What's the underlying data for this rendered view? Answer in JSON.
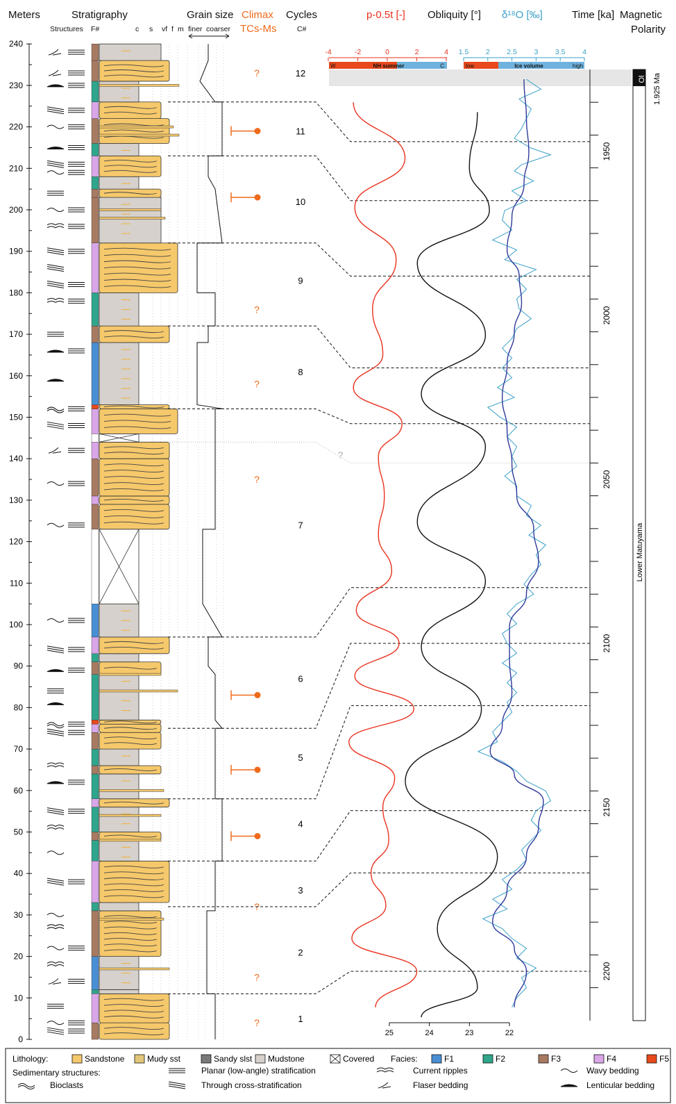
{
  "headers": {
    "meters": "Meters",
    "stratigraphy": "Stratigraphy",
    "structures": "Structures",
    "facies_num": "F#",
    "grain_c": "c",
    "grain_s": "s",
    "grain_vf": "vf",
    "grain_f": "f",
    "grain_m": "m",
    "grain_size": "Grain size",
    "finer": "finer",
    "coarser": "coarser",
    "climax": "Climax",
    "tcs_ms": "TCs-Ms",
    "cycles": "Cycles",
    "cycle_num": "C#",
    "precession": "p-0.5t [-]",
    "obliquity": "Obliquity [°]",
    "d18o": "δ¹⁸O [‰]",
    "time": "Time [ka]",
    "magnetic": "Magnetic",
    "polarity": "Polarity"
  },
  "depth_axis": {
    "min": 0,
    "max": 240,
    "ticks": [
      0,
      10,
      20,
      30,
      40,
      50,
      60,
      70,
      80,
      90,
      100,
      110,
      120,
      130,
      140,
      150,
      160,
      170,
      180,
      190,
      200,
      210,
      220,
      230,
      240
    ]
  },
  "time_axis": {
    "min": 1925,
    "max": 2215,
    "ticks": [
      1950,
      2000,
      2050,
      2100,
      2150,
      2200
    ]
  },
  "precession_axis": {
    "min": -4,
    "max": 4,
    "ticks": [
      "-4",
      "-2",
      "0",
      "2",
      "4"
    ],
    "bar_left": "W",
    "bar_mid": "NH summer",
    "bar_right": "C"
  },
  "d18o_axis": {
    "min": 1.5,
    "max": 4,
    "ticks": [
      "1.5",
      "2",
      "2.5",
      "3",
      "3.5",
      "4"
    ],
    "bar_left": "low",
    "bar_mid": "Ice volume",
    "bar_right": "high"
  },
  "obliquity_axis": {
    "min": 22,
    "max": 25,
    "ticks": [
      "25",
      "24",
      "23",
      "22"
    ]
  },
  "cycles": [
    {
      "label": "1",
      "m": 5
    },
    {
      "label": "2",
      "m": 21
    },
    {
      "label": "3",
      "m": 36
    },
    {
      "label": "4",
      "m": 52
    },
    {
      "label": "5",
      "m": 68
    },
    {
      "label": "6",
      "m": 87
    },
    {
      "label": "7",
      "m": 124
    },
    {
      "label": "8",
      "m": 161
    },
    {
      "label": "9",
      "m": 183
    },
    {
      "label": "10",
      "m": 202
    },
    {
      "label": "11",
      "m": 219
    },
    {
      "label": "12",
      "m": 233
    }
  ],
  "climax": [
    {
      "m": 4,
      "type": "?"
    },
    {
      "m": 15,
      "type": "?"
    },
    {
      "m": 32,
      "type": "?"
    },
    {
      "m": 49,
      "type": "bar"
    },
    {
      "m": 65,
      "type": "bar"
    },
    {
      "m": 83,
      "type": "bar"
    },
    {
      "m": 135,
      "type": "?"
    },
    {
      "m": 158,
      "type": "?"
    },
    {
      "m": 176,
      "type": "?"
    },
    {
      "m": 203,
      "type": "bar"
    },
    {
      "m": 219,
      "type": "bar"
    },
    {
      "m": 233,
      "type": "?"
    }
  ],
  "cycle_boundaries": [
    {
      "m": 11,
      "t": 2200
    },
    {
      "m": 32,
      "t": 2170
    },
    {
      "m": 43,
      "t": 2151
    },
    {
      "m": 58,
      "t": 2119
    },
    {
      "m": 75,
      "t": 2100
    },
    {
      "m": 97,
      "t": 2083
    },
    {
      "m": 152,
      "t": 2033
    },
    {
      "m": 172,
      "t": 2016
    },
    {
      "m": 192,
      "t": 1988
    },
    {
      "m": 213,
      "t": 1965
    },
    {
      "m": 226,
      "t": 1947
    }
  ],
  "uncertain_boundary": {
    "m": 144,
    "t": 2045,
    "label": "?"
  },
  "precession_peaks": [
    {
      "t": 1935,
      "v": -2.3
    },
    {
      "t": 1952,
      "v": 1.2
    },
    {
      "t": 1967,
      "v": -2.2
    },
    {
      "t": 1983,
      "v": 0.6
    },
    {
      "t": 1998,
      "v": -1.0
    },
    {
      "t": 2012,
      "v": -0.3
    },
    {
      "t": 2022,
      "v": -2.3
    },
    {
      "t": 2033,
      "v": 1.0
    },
    {
      "t": 2043,
      "v": -0.6
    },
    {
      "t": 2055,
      "v": -0.2
    },
    {
      "t": 2067,
      "v": -0.6
    },
    {
      "t": 2078,
      "v": 0.3
    },
    {
      "t": 2090,
      "v": -2.1
    },
    {
      "t": 2100,
      "v": 0.8
    },
    {
      "t": 2110,
      "v": -2.2
    },
    {
      "t": 2120,
      "v": 1.8
    },
    {
      "t": 2130,
      "v": -2.6
    },
    {
      "t": 2141,
      "v": 0.5
    },
    {
      "t": 2150,
      "v": -0.3
    },
    {
      "t": 2160,
      "v": 0.1
    },
    {
      "t": 2170,
      "v": -1.1
    },
    {
      "t": 2180,
      "v": -0.1
    },
    {
      "t": 2190,
      "v": -2.4
    },
    {
      "t": 2200,
      "v": 2.0
    },
    {
      "t": 2211,
      "v": -0.8
    }
  ],
  "obliquity_peaks": [
    {
      "t": 1938,
      "v": 22.8
    },
    {
      "t": 1955,
      "v": 23.0
    },
    {
      "t": 1968,
      "v": 22.5
    },
    {
      "t": 1984,
      "v": 24.3
    },
    {
      "t": 2006,
      "v": 22.6
    },
    {
      "t": 2024,
      "v": 24.2
    },
    {
      "t": 2040,
      "v": 22.6
    },
    {
      "t": 2063,
      "v": 24.3
    },
    {
      "t": 2081,
      "v": 22.6
    },
    {
      "t": 2101,
      "v": 24.2
    },
    {
      "t": 2120,
      "v": 22.7
    },
    {
      "t": 2142,
      "v": 24.6
    },
    {
      "t": 2165,
      "v": 22.3
    },
    {
      "t": 2187,
      "v": 23.8
    },
    {
      "t": 2205,
      "v": 22.8
    },
    {
      "t": 2214,
      "v": 24.2
    }
  ],
  "d18o_raw": [
    [
      1928,
      2.8
    ],
    [
      1931,
      3.1
    ],
    [
      1934,
      2.65
    ],
    [
      1937,
      2.9
    ],
    [
      1940,
      2.8
    ],
    [
      1943,
      2.7
    ],
    [
      1946,
      2.55
    ],
    [
      1949,
      2.9
    ],
    [
      1951,
      3.3
    ],
    [
      1954,
      2.7
    ],
    [
      1956,
      2.55
    ],
    [
      1959,
      2.95
    ],
    [
      1962,
      2.5
    ],
    [
      1965,
      2.8
    ],
    [
      1968,
      2.35
    ],
    [
      1971,
      2.3
    ],
    [
      1974,
      2.5
    ],
    [
      1977,
      2.1
    ],
    [
      1980,
      2.6
    ],
    [
      1983,
      2.35
    ],
    [
      1986,
      3.0
    ],
    [
      1989,
      2.6
    ],
    [
      1992,
      2.8
    ],
    [
      1995,
      2.6
    ],
    [
      1998,
      2.65
    ],
    [
      2001,
      2.9
    ],
    [
      2004,
      2.6
    ],
    [
      2007,
      2.5
    ],
    [
      2010,
      2.3
    ],
    [
      2013,
      2.5
    ],
    [
      2016,
      2.3
    ],
    [
      2019,
      2.5
    ],
    [
      2022,
      2.2
    ],
    [
      2025,
      2.55
    ],
    [
      2028,
      2.0
    ],
    [
      2031,
      2.25
    ],
    [
      2034,
      2.6
    ],
    [
      2037,
      2.4
    ],
    [
      2040,
      2.6
    ],
    [
      2043,
      2.5
    ],
    [
      2046,
      2.6
    ],
    [
      2049,
      2.35
    ],
    [
      2052,
      2.6
    ],
    [
      2055,
      2.6
    ],
    [
      2058,
      2.9
    ],
    [
      2061,
      2.8
    ],
    [
      2064,
      3.1
    ],
    [
      2067,
      2.85
    ],
    [
      2070,
      3.2
    ],
    [
      2073,
      3.0
    ],
    [
      2076,
      3.1
    ],
    [
      2079,
      2.9
    ],
    [
      2082,
      2.75
    ],
    [
      2085,
      2.95
    ],
    [
      2088,
      2.6
    ],
    [
      2091,
      2.4
    ],
    [
      2094,
      2.6
    ],
    [
      2097,
      2.3
    ],
    [
      2100,
      2.4
    ],
    [
      2103,
      2.6
    ],
    [
      2106,
      2.3
    ],
    [
      2109,
      2.6
    ],
    [
      2112,
      2.4
    ],
    [
      2115,
      2.6
    ],
    [
      2118,
      2.4
    ],
    [
      2121,
      2.5
    ],
    [
      2124,
      2.3
    ],
    [
      2127,
      2.1
    ],
    [
      2130,
      2.2
    ],
    [
      2133,
      1.8
    ],
    [
      2136,
      2.3
    ],
    [
      2139,
      2.6
    ],
    [
      2142,
      2.8
    ],
    [
      2145,
      3.2
    ],
    [
      2148,
      3.3
    ],
    [
      2151,
      3.0
    ],
    [
      2154,
      2.9
    ],
    [
      2157,
      3.1
    ],
    [
      2160,
      2.9
    ],
    [
      2163,
      2.7
    ],
    [
      2166,
      2.8
    ],
    [
      2169,
      2.6
    ],
    [
      2172,
      2.3
    ],
    [
      2175,
      2.5
    ],
    [
      2178,
      2.1
    ],
    [
      2181,
      2.4
    ],
    [
      2184,
      1.9
    ],
    [
      2187,
      2.3
    ],
    [
      2190,
      2.5
    ],
    [
      2193,
      2.8
    ],
    [
      2196,
      2.6
    ],
    [
      2199,
      3.0
    ],
    [
      2202,
      2.7
    ],
    [
      2205,
      2.8
    ],
    [
      2208,
      2.6
    ],
    [
      2211,
      2.5
    ]
  ],
  "d18o_smooth": [
    [
      1928,
      2.75
    ],
    [
      1940,
      2.8
    ],
    [
      1950,
      2.85
    ],
    [
      1960,
      2.75
    ],
    [
      1970,
      2.5
    ],
    [
      1980,
      2.4
    ],
    [
      1988,
      2.65
    ],
    [
      1996,
      2.7
    ],
    [
      2005,
      2.55
    ],
    [
      2015,
      2.4
    ],
    [
      2025,
      2.3
    ],
    [
      2035,
      2.4
    ],
    [
      2045,
      2.5
    ],
    [
      2055,
      2.6
    ],
    [
      2065,
      2.95
    ],
    [
      2075,
      3.05
    ],
    [
      2085,
      2.8
    ],
    [
      2095,
      2.45
    ],
    [
      2105,
      2.45
    ],
    [
      2115,
      2.5
    ],
    [
      2125,
      2.3
    ],
    [
      2133,
      2.05
    ],
    [
      2140,
      2.55
    ],
    [
      2148,
      3.15
    ],
    [
      2156,
      3.05
    ],
    [
      2165,
      2.8
    ],
    [
      2175,
      2.4
    ],
    [
      2185,
      2.1
    ],
    [
      2193,
      2.55
    ],
    [
      2200,
      2.8
    ],
    [
      2211,
      2.55
    ]
  ],
  "magnetic": {
    "label": "Lower Matuyama",
    "event": "Ol",
    "event_age": "1.925 Ma"
  },
  "stratigraphy": [
    {
      "from": 0,
      "to": 4,
      "lith": "sandstone",
      "fac": "F3",
      "gs": "f"
    },
    {
      "from": 4,
      "to": 11,
      "lith": "sandstone",
      "fac": "F4",
      "gs": "f"
    },
    {
      "from": 11,
      "to": 12,
      "lith": "mudstone",
      "fac": "F2",
      "gs": "c"
    },
    {
      "from": 12,
      "to": 20,
      "lith": "mudstone",
      "fac": "F1",
      "gs": "c"
    },
    {
      "from": 20,
      "to": 31,
      "lith": "sandstone",
      "fac": "F3",
      "gs": "vf"
    },
    {
      "from": 31,
      "to": 33,
      "lith": "mudstone",
      "fac": "F2",
      "gs": "c"
    },
    {
      "from": 33,
      "to": 43,
      "lith": "sandstone",
      "fac": "F4",
      "gs": "f"
    },
    {
      "from": 43,
      "to": 48,
      "lith": "mudstone",
      "fac": "F2",
      "gs": "c"
    },
    {
      "from": 48,
      "to": 50,
      "lith": "sandstone",
      "fac": "F3",
      "gs": "vf"
    },
    {
      "from": 50,
      "to": 56,
      "lith": "mudstone",
      "fac": "F2",
      "gs": "c"
    },
    {
      "from": 56,
      "to": 58,
      "lith": "sandstone",
      "fac": "F4",
      "gs": "f"
    },
    {
      "from": 58,
      "to": 64,
      "lith": "mudstone",
      "fac": "F2",
      "gs": "c"
    },
    {
      "from": 64,
      "to": 66,
      "lith": "sandstone",
      "fac": "F3",
      "gs": "vf"
    },
    {
      "from": 66,
      "to": 70,
      "lith": "mudstone",
      "fac": "F2",
      "gs": "c"
    },
    {
      "from": 70,
      "to": 74,
      "lith": "sandstone",
      "fac": "F3",
      "gs": "vf"
    },
    {
      "from": 74,
      "to": 76,
      "lith": "sandstone",
      "fac": "F4",
      "gs": "vf"
    },
    {
      "from": 76,
      "to": 77,
      "lith": "sandstone",
      "fac": "F5",
      "gs": "vf"
    },
    {
      "from": 77,
      "to": 88,
      "lith": "mudstone",
      "fac": "F2",
      "gs": "c"
    },
    {
      "from": 88,
      "to": 91,
      "lith": "sandstone",
      "fac": "F3",
      "gs": "vf"
    },
    {
      "from": 91,
      "to": 93,
      "lith": "mudstone",
      "fac": "F2",
      "gs": "c"
    },
    {
      "from": 93,
      "to": 97,
      "lith": "sandstone",
      "fac": "F4",
      "gs": "f"
    },
    {
      "from": 97,
      "to": 105,
      "lith": "mudstone",
      "fac": "F1",
      "gs": "c"
    },
    {
      "from": 105,
      "to": 123,
      "lith": "covered",
      "fac": "none",
      "gs": "c"
    },
    {
      "from": 123,
      "to": 129,
      "lith": "sandstone",
      "fac": "F3",
      "gs": "f"
    },
    {
      "from": 129,
      "to": 131,
      "lith": "sandstone",
      "fac": "F4",
      "gs": "f"
    },
    {
      "from": 131,
      "to": 140,
      "lith": "sandstone",
      "fac": "F3",
      "gs": "f"
    },
    {
      "from": 140,
      "to": 144,
      "lith": "sandstone",
      "fac": "F4",
      "gs": "f"
    },
    {
      "from": 144,
      "to": 146,
      "lith": "covered",
      "fac": "none",
      "gs": "c"
    },
    {
      "from": 146,
      "to": 152,
      "lith": "sandstone",
      "fac": "F4",
      "gs": "m"
    },
    {
      "from": 152,
      "to": 153,
      "lith": "sandstone",
      "fac": "F5",
      "gs": "f"
    },
    {
      "from": 153,
      "to": 168,
      "lith": "mudstone",
      "fac": "F1",
      "gs": "c"
    },
    {
      "from": 168,
      "to": 172,
      "lith": "sandstone",
      "fac": "F3",
      "gs": "f"
    },
    {
      "from": 172,
      "to": 180,
      "lith": "mudstone",
      "fac": "F2",
      "gs": "c"
    },
    {
      "from": 180,
      "to": 192,
      "lith": "sandstone",
      "fac": "F4",
      "gs": "m"
    },
    {
      "from": 192,
      "to": 203,
      "lith": "mudstone",
      "fac": "F3",
      "gs": "vf"
    },
    {
      "from": 203,
      "to": 205,
      "lith": "sandstone",
      "fac": "F3",
      "gs": "vf"
    },
    {
      "from": 205,
      "to": 208,
      "lith": "mudstone",
      "fac": "F2",
      "gs": "c"
    },
    {
      "from": 208,
      "to": 213,
      "lith": "sandstone",
      "fac": "F4",
      "gs": "vf"
    },
    {
      "from": 213,
      "to": 216,
      "lith": "mudstone",
      "fac": "F2",
      "gs": "c"
    },
    {
      "from": 216,
      "to": 222,
      "lith": "sandstone",
      "fac": "F3",
      "gs": "f"
    },
    {
      "from": 222,
      "to": 226,
      "lith": "sandstone",
      "fac": "F4",
      "gs": "vf"
    },
    {
      "from": 226,
      "to": 231,
      "lith": "mudstone",
      "fac": "F2",
      "gs": "c"
    },
    {
      "from": 231,
      "to": 236,
      "lith": "sandstone",
      "fac": "F3",
      "gs": "f"
    },
    {
      "from": 236,
      "to": 240,
      "lith": "mudstone",
      "fac": "F3",
      "gs": "vf"
    }
  ],
  "structures": [
    {
      "m": 2,
      "sym": "cross"
    },
    {
      "m": 4,
      "sym": "wavy"
    },
    {
      "m": 8,
      "sym": "planar"
    },
    {
      "m": 14,
      "sym": "flaser"
    },
    {
      "m": 18,
      "sym": "ripple"
    },
    {
      "m": 22,
      "sym": "wavy"
    },
    {
      "m": 27,
      "sym": "ripple"
    },
    {
      "m": 30,
      "sym": "wavy"
    },
    {
      "m": 38,
      "sym": "cross"
    },
    {
      "m": 45,
      "sym": "wavy"
    },
    {
      "m": 51,
      "sym": "ripple"
    },
    {
      "m": 55,
      "sym": "cross"
    },
    {
      "m": 62,
      "sym": "lenticular"
    },
    {
      "m": 66,
      "sym": "ripple"
    },
    {
      "m": 74,
      "sym": "cross"
    },
    {
      "m": 76,
      "sym": "bioclast"
    },
    {
      "m": 81,
      "sym": "lenticular"
    },
    {
      "m": 84,
      "sym": "planar"
    },
    {
      "m": 89,
      "sym": "lenticular"
    },
    {
      "m": 94,
      "sym": "cross"
    },
    {
      "m": 101,
      "sym": "wavy"
    },
    {
      "m": 124,
      "sym": "wavy"
    },
    {
      "m": 134,
      "sym": "wavy"
    },
    {
      "m": 142,
      "sym": "flaser"
    },
    {
      "m": 148,
      "sym": "cross"
    },
    {
      "m": 152,
      "sym": "bioclast"
    },
    {
      "m": 159,
      "sym": "lenticular"
    },
    {
      "m": 166,
      "sym": "lenticular"
    },
    {
      "m": 170,
      "sym": "planar"
    },
    {
      "m": 178,
      "sym": "ripple"
    },
    {
      "m": 182,
      "sym": "cross"
    },
    {
      "m": 186,
      "sym": "cross"
    },
    {
      "m": 190,
      "sym": "cross"
    },
    {
      "m": 196,
      "sym": "ripple"
    },
    {
      "m": 200,
      "sym": "wavy"
    },
    {
      "m": 204,
      "sym": "planar"
    },
    {
      "m": 209,
      "sym": "wavy"
    },
    {
      "m": 211,
      "sym": "cross"
    },
    {
      "m": 215,
      "sym": "lenticular"
    },
    {
      "m": 220,
      "sym": "wavy"
    },
    {
      "m": 224,
      "sym": "cross"
    },
    {
      "m": 230,
      "sym": "lenticular"
    },
    {
      "m": 233,
      "sym": "flaser"
    },
    {
      "m": 238,
      "sym": "flaser"
    }
  ],
  "legend": {
    "lithology_label": "Lithology:",
    "lithology": [
      {
        "key": "sandstone",
        "label": "Sandstone",
        "color": "#f5c86b"
      },
      {
        "key": "mudsst",
        "label": "Mudy sst",
        "color": "#e5cf8a"
      },
      {
        "key": "sandyslst",
        "label": "Sandy slst",
        "color": "#7a7a7a"
      },
      {
        "key": "mudstone",
        "label": "Mudstone",
        "color": "#d6d1cc"
      },
      {
        "key": "covered",
        "label": "Covered",
        "color": "#ffffff"
      }
    ],
    "facies_label": "Facies:",
    "facies": [
      {
        "key": "F1",
        "label": "F1",
        "color": "#4a8fd4"
      },
      {
        "key": "F2",
        "label": "F2",
        "color": "#2fa58c"
      },
      {
        "key": "F3",
        "label": "F3",
        "color": "#a87a62"
      },
      {
        "key": "F4",
        "label": "F4",
        "color": "#d9a6e8"
      },
      {
        "key": "F5",
        "label": "F5",
        "color": "#e8491c"
      }
    ],
    "structures_label": "Sedimentary structures:",
    "structures": [
      {
        "sym": "planar",
        "label": "Planar (low-angle) stratification"
      },
      {
        "sym": "ripple",
        "label": "Current ripples"
      },
      {
        "sym": "wavy",
        "label": "Wavy bedding"
      },
      {
        "sym": "bioclast",
        "label": "Bioclasts"
      },
      {
        "sym": "cross",
        "label": "Through cross-stratification"
      },
      {
        "sym": "flaser",
        "label": "Flaser bedding"
      },
      {
        "sym": "lenticular",
        "label": "Lenticular bedding"
      }
    ]
  },
  "colors": {
    "precession": "#e8321e",
    "obliquity": "#111111",
    "d18o_raw": "#3aa0c9",
    "d18o_smooth": "#2f3a9a",
    "climax": "#ef6a1a",
    "header_orange": "#ef6a1a",
    "header_red": "#e8321e",
    "header_blue": "#3aa0c9"
  }
}
